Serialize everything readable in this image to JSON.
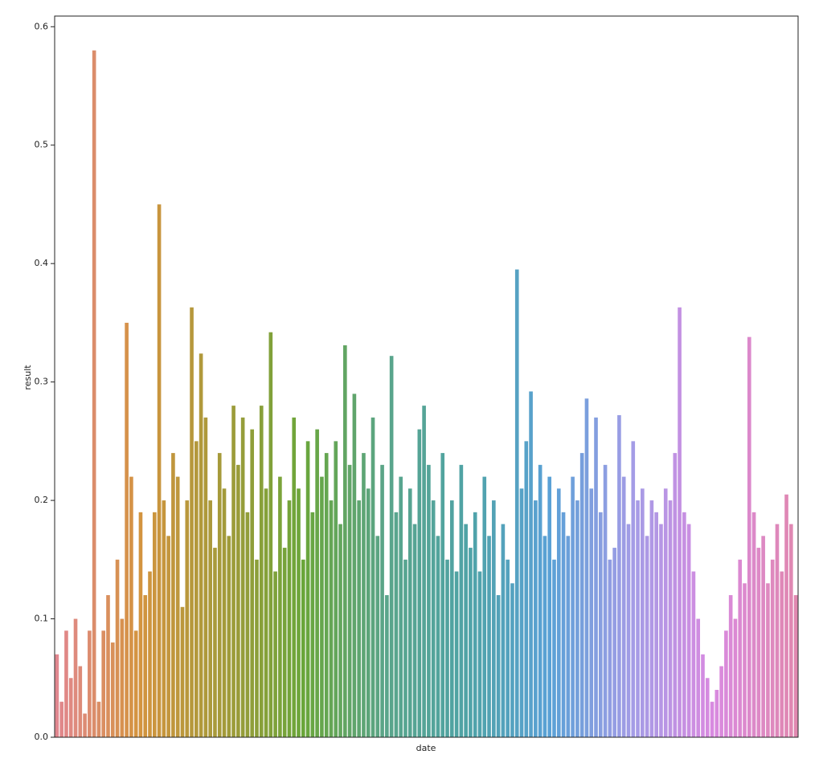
{
  "chart_data": {
    "type": "bar",
    "x_label": "date",
    "y_label": "result",
    "categories": [
      null,
      null,
      null,
      null,
      null,
      null,
      null,
      null,
      null,
      null,
      null,
      null,
      null,
      null,
      null,
      null,
      null,
      null,
      null,
      null,
      null,
      null,
      null,
      null,
      null,
      null,
      null,
      null,
      null,
      null,
      null,
      null,
      null,
      null,
      null,
      null,
      null,
      null,
      null,
      null,
      null,
      null,
      null,
      null,
      null,
      null,
      null,
      null,
      null,
      null,
      null,
      null,
      null,
      null,
      null,
      null,
      null,
      null,
      null,
      null,
      null,
      null,
      null,
      null,
      null,
      null,
      null,
      null,
      null,
      null,
      null,
      null,
      null,
      null,
      null,
      null,
      null,
      null,
      null,
      null,
      null,
      null,
      null,
      null,
      null,
      null,
      null,
      null,
      null,
      null,
      null,
      null,
      null,
      null,
      null,
      null,
      null,
      null,
      null,
      null,
      null,
      null,
      null,
      null,
      null,
      null,
      null,
      null,
      null,
      null,
      null,
      null,
      null,
      null,
      null,
      null,
      null,
      null,
      null,
      null,
      null,
      null,
      null,
      null,
      null,
      null,
      null,
      null,
      null,
      null,
      null,
      null,
      null,
      null,
      null,
      null,
      null,
      null,
      null,
      null,
      null,
      null,
      null,
      null,
      null,
      null,
      null,
      null,
      null,
      null,
      null,
      null,
      null,
      null,
      null,
      null,
      null,
      null,
      null,
      null
    ],
    "values": [
      0.07,
      0.03,
      0.09,
      0.05,
      0.1,
      0.06,
      0.02,
      0.09,
      0.58,
      0.03,
      0.09,
      0.12,
      0.08,
      0.15,
      0.1,
      0.35,
      0.22,
      0.09,
      0.19,
      0.12,
      0.14,
      0.19,
      0.45,
      0.2,
      0.17,
      0.24,
      0.22,
      0.11,
      0.2,
      0.363,
      0.25,
      0.324,
      0.27,
      0.2,
      0.16,
      0.24,
      0.21,
      0.17,
      0.28,
      0.23,
      0.27,
      0.19,
      0.26,
      0.15,
      0.28,
      0.21,
      0.342,
      0.14,
      0.22,
      0.16,
      0.2,
      0.27,
      0.21,
      0.15,
      0.25,
      0.19,
      0.26,
      0.22,
      0.24,
      0.2,
      0.25,
      0.18,
      0.331,
      0.23,
      0.29,
      0.2,
      0.24,
      0.21,
      0.27,
      0.17,
      0.23,
      0.12,
      0.322,
      0.19,
      0.22,
      0.15,
      0.21,
      0.18,
      0.26,
      0.28,
      0.23,
      0.2,
      0.17,
      0.24,
      0.15,
      0.2,
      0.14,
      0.23,
      0.18,
      0.16,
      0.19,
      0.14,
      0.22,
      0.17,
      0.2,
      0.12,
      0.18,
      0.15,
      0.13,
      0.395,
      0.21,
      0.25,
      0.292,
      0.2,
      0.23,
      0.17,
      0.22,
      0.15,
      0.21,
      0.19,
      0.17,
      0.22,
      0.2,
      0.24,
      0.286,
      0.21,
      0.27,
      0.19,
      0.23,
      0.15,
      0.16,
      0.272,
      0.22,
      0.18,
      0.25,
      0.2,
      0.21,
      0.17,
      0.2,
      0.19,
      0.18,
      0.21,
      0.2,
      0.24,
      0.363,
      0.19,
      0.18,
      0.14,
      0.1,
      0.07,
      0.05,
      0.03,
      0.04,
      0.06,
      0.09,
      0.12,
      0.1,
      0.15,
      0.13,
      0.338,
      0.19,
      0.16,
      0.17,
      0.13,
      0.15,
      0.18,
      0.14,
      0.205,
      0.18,
      0.12
    ],
    "palette": [
      "#e1878f",
      "#d4943f",
      "#a59a3a",
      "#6aa63a",
      "#5aa58a",
      "#4fa3a6",
      "#5aa1d6",
      "#a39ce6",
      "#d98ae0",
      "#e088b0"
    ],
    "ylim": [
      0,
      0.609
    ],
    "yticks": [
      {
        "value": 0,
        "label": "0.0"
      },
      0.1,
      0.2,
      0.3,
      0.4,
      0.5,
      0.6
    ]
  }
}
